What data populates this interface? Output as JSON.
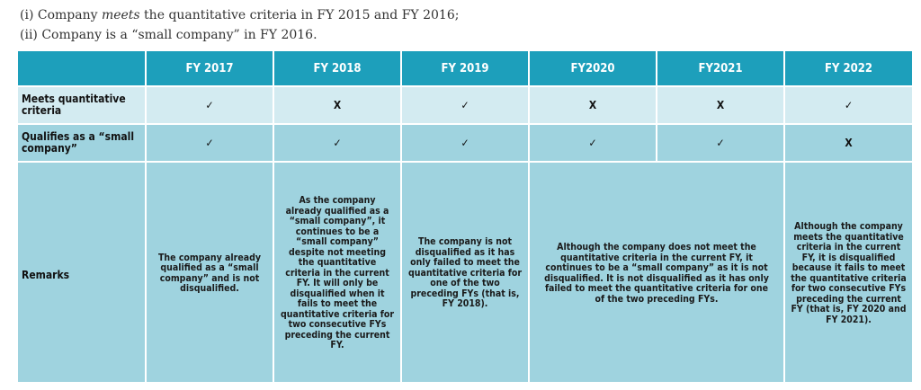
{
  "intro": {
    "line1_prefix": "(i)  Company ",
    "line1_emph": "meets",
    "line1_suffix": " the quantitative criteria in FY 2015 and FY 2016;",
    "line2": "(ii)  Company is a “small company” in FY 2016."
  },
  "table": {
    "columns": [
      "FY 2017",
      "FY 2018",
      "FY 2019",
      "FY2020",
      "FY2021",
      "FY 2022"
    ],
    "rows": {
      "quantitative": {
        "label": "Meets quantitative criteria",
        "values": [
          "✓",
          "X",
          "✓",
          "X",
          "X",
          "✓"
        ]
      },
      "small": {
        "label": "Qualifies as a “small company”",
        "values": [
          "✓",
          "✓",
          "✓",
          "✓",
          "✓",
          "X"
        ]
      },
      "remarks": {
        "label": "Remarks",
        "fy2017": "The company already qualified as a “small company” and is not disqualified.",
        "fy2018": "As the company already qualified as a “small company”, it continues to be a “small company” despite not meeting the quantitative criteria in the current FY. It will only be disqualified when it fails to meet the quantitative criteria for two consecutive FYs preceding the current FY.",
        "fy2019": "The company is not disqualified as it has only failed to meet the quantitative criteria for one of the two preceding FYs (that is, FY 2018).",
        "fy2020_2021": "Although the company does not meet the quantitative criteria in the current FY, it continues to be a “small company” as it is not disqualified. It is not disqualified as it has only failed to meet the quantitative criteria for one of the two preceding FYs.",
        "fy2022": "Although the company meets the quantitative criteria in the current FY, it is disqualified because it fails to meet the quantitative criteria for two consecutive FYs preceding the current FY (that is, FY 2020 and FY 2021)."
      }
    }
  },
  "colors": {
    "header": "#1d9fbb",
    "row_light": "#d3ebf1",
    "row_dark": "#9fd3df"
  }
}
